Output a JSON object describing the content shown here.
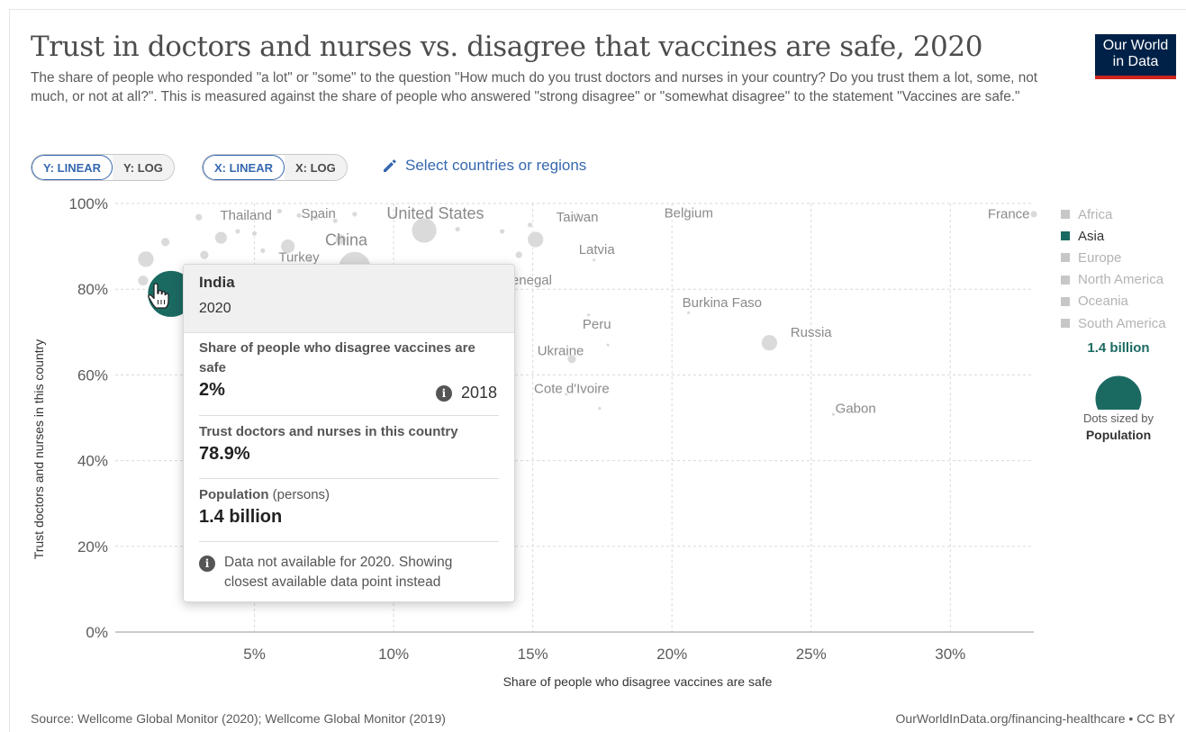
{
  "header": {
    "title": "Trust in doctors and nurses vs. disagree that vaccines are safe, 2020",
    "subtitle": "The share of people who responded \"a lot\" or \"some\" to the question \"How much do you trust doctors and nurses in your country? Do you trust them a lot, some, not much, or not at all?\". This is measured against the share of people who answered \"strong disagree\" or \"somewhat disagree\" to the statement \"Vaccines are safe.\"",
    "logo_line1": "Our World",
    "logo_line2": "in Data"
  },
  "controls": {
    "y_linear": "Y: LINEAR",
    "y_log": "Y: LOG",
    "x_linear": "X: LINEAR",
    "x_log": "X: LOG",
    "select_label": "Select countries or regions",
    "accent": "#3568b0"
  },
  "legend": {
    "items": [
      {
        "label": "Africa",
        "active": false
      },
      {
        "label": "Asia",
        "active": true
      },
      {
        "label": "Europe",
        "active": false
      },
      {
        "label": "North America",
        "active": false
      },
      {
        "label": "Oceania",
        "active": false
      },
      {
        "label": "South America",
        "active": false
      }
    ],
    "size_value": "1.4 billion",
    "size_note_line1": "Dots sized by",
    "size_note_line2": "Population",
    "asia_color": "#1b6a62",
    "inactive_color": "#c7c7c7"
  },
  "tooltip": {
    "entity": "India",
    "year": "2020",
    "x_label": "Share of people who disagree vaccines are safe",
    "x_value": "2%",
    "x_year": "2018",
    "y_label": "Trust doctors and nurses in this country",
    "y_value": "78.9%",
    "pop_label": "Population",
    "pop_unit": "(persons)",
    "pop_value": "1.4 billion",
    "note": "Data not available for 2020. Showing closest available data point instead"
  },
  "footer": {
    "source": "Source: Wellcome Global Monitor (2020); Wellcome Global Monitor (2019)",
    "url": "OurWorldInData.org/financing-healthcare • CC BY"
  },
  "chart_data": {
    "type": "scatter",
    "title": "Trust in doctors and nurses vs. disagree that vaccines are safe, 2020",
    "xlabel": "Share of people who disagree vaccines are safe",
    "ylabel": "Trust doctors and nurses in this country",
    "xlim": [
      0,
      33
    ],
    "ylim": [
      0,
      100
    ],
    "x_ticks": [
      5,
      10,
      15,
      20,
      25,
      30
    ],
    "x_tick_labels": [
      "5%",
      "10%",
      "15%",
      "20%",
      "25%",
      "30%"
    ],
    "y_ticks": [
      0,
      20,
      40,
      60,
      80,
      100
    ],
    "y_tick_labels": [
      "0%",
      "20%",
      "40%",
      "60%",
      "80%",
      "100%"
    ],
    "grid": true,
    "legend_position": "right",
    "highlighted": {
      "name": "India",
      "x": 2,
      "y": 78.9
    },
    "labels": [
      {
        "text": "Thailand",
        "x": 4.7,
        "y": 97.3
      },
      {
        "text": "Spain",
        "x": 7.3,
        "y": 97.7
      },
      {
        "text": "United States",
        "x": 11.5,
        "y": 97.5
      },
      {
        "text": "China",
        "x": 8.3,
        "y": 91.3
      },
      {
        "text": "Turkey",
        "x": 6.6,
        "y": 87.5
      },
      {
        "text": "Taiwan",
        "x": 16.6,
        "y": 96.9
      },
      {
        "text": "Belgium",
        "x": 20.6,
        "y": 97.8
      },
      {
        "text": "France",
        "x": 32.1,
        "y": 97.6
      },
      {
        "text": "Latvia",
        "x": 17.3,
        "y": 89.3
      },
      {
        "text": "Senegal",
        "x": 14.8,
        "y": 82.1
      },
      {
        "text": "Burkina Faso",
        "x": 21.8,
        "y": 76.9
      },
      {
        "text": "Peru",
        "x": 17.3,
        "y": 71.8
      },
      {
        "text": "Russia",
        "x": 25.0,
        "y": 70.0
      },
      {
        "text": "Ukraine",
        "x": 16.0,
        "y": 65.6
      },
      {
        "text": "Cote d'Ivoire",
        "x": 16.4,
        "y": 56.8
      },
      {
        "text": "Gabon",
        "x": 26.6,
        "y": 52.2
      }
    ],
    "points": [
      {
        "x": 1.1,
        "y": 87.0,
        "r": 9
      },
      {
        "x": 1.0,
        "y": 82.0,
        "r": 6
      },
      {
        "x": 1.8,
        "y": 91.0,
        "r": 5
      },
      {
        "x": 3.0,
        "y": 96.8,
        "r": 4
      },
      {
        "x": 3.8,
        "y": 92.0,
        "r": 7
      },
      {
        "x": 3.2,
        "y": 88.0,
        "r": 5
      },
      {
        "x": 4.0,
        "y": 85.0,
        "r": 4
      },
      {
        "x": 2.8,
        "y": 83.0,
        "r": 4
      },
      {
        "x": 5.0,
        "y": 93.0,
        "r": 3
      },
      {
        "x": 5.3,
        "y": 89.0,
        "r": 3
      },
      {
        "x": 6.2,
        "y": 90.0,
        "r": 8
      },
      {
        "x": 5.9,
        "y": 98.2,
        "r": 3
      },
      {
        "x": 6.6,
        "y": 97.2,
        "r": 3
      },
      {
        "x": 7.2,
        "y": 96.7,
        "r": 3
      },
      {
        "x": 8.1,
        "y": 91.6,
        "r": 6
      },
      {
        "x": 8.6,
        "y": 85.0,
        "r": 18
      },
      {
        "x": 7.0,
        "y": 87.0,
        "r": 3
      },
      {
        "x": 7.9,
        "y": 96.0,
        "r": 3
      },
      {
        "x": 8.6,
        "y": 97.5,
        "r": 3
      },
      {
        "x": 11.1,
        "y": 93.7,
        "r": 14
      },
      {
        "x": 12.3,
        "y": 94.0,
        "r": 3
      },
      {
        "x": 13.9,
        "y": 93.5,
        "r": 3
      },
      {
        "x": 15.1,
        "y": 91.6,
        "r": 9
      },
      {
        "x": 14.5,
        "y": 88.0,
        "r": 4
      },
      {
        "x": 14.9,
        "y": 95.0,
        "r": 3
      },
      {
        "x": 16.6,
        "y": 97.5,
        "r": 2
      },
      {
        "x": 17.2,
        "y": 86.8,
        "r": 2
      },
      {
        "x": 20.5,
        "y": 98.6,
        "r": 2
      },
      {
        "x": 20.6,
        "y": 74.5,
        "r": 2
      },
      {
        "x": 17.0,
        "y": 74.0,
        "r": 2
      },
      {
        "x": 23.5,
        "y": 67.5,
        "r": 9
      },
      {
        "x": 16.4,
        "y": 63.7,
        "r": 5
      },
      {
        "x": 17.7,
        "y": 67.0,
        "r": 2
      },
      {
        "x": 16.2,
        "y": 55.5,
        "r": 2
      },
      {
        "x": 17.4,
        "y": 52.2,
        "r": 2
      },
      {
        "x": 25.8,
        "y": 50.8,
        "r": 2
      },
      {
        "x": 33.0,
        "y": 97.5,
        "r": 4
      },
      {
        "x": 4.4,
        "y": 93.5,
        "r": 3
      }
    ]
  }
}
